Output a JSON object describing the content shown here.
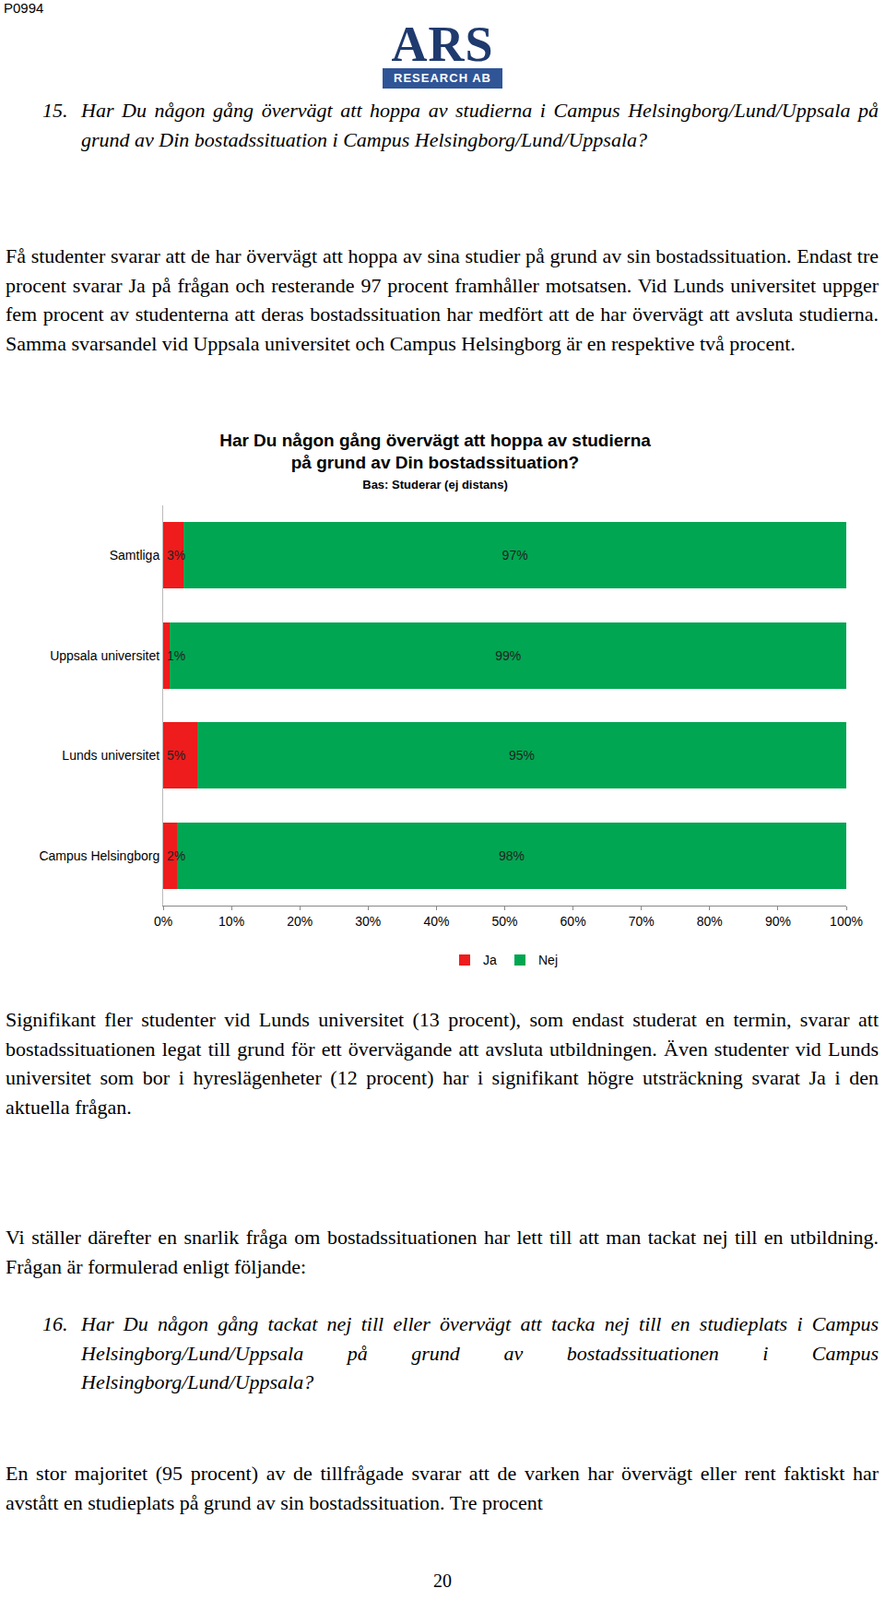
{
  "document": {
    "page_id": "P0994",
    "logo": {
      "name": "ARS",
      "subtitle": "RESEARCH AB"
    },
    "question_15": {
      "number": "15.",
      "text": "Har Du någon gång övervägt att hoppa av studierna i Campus Helsingborg/Lund/Uppsala på grund av Din bostadssituation i Campus Helsingborg/Lund/Uppsala?"
    },
    "paragraph_1": "Få studenter svarar att de har övervägt att hoppa av sina studier på grund av sin bostadssituation. Endast tre procent svarar Ja på frågan och resterande 97 procent framhåller motsatsen. Vid Lunds universitet uppger fem procent av studenterna att deras bostadssituation har medfört att de har övervägt att avsluta studierna. Samma svarsandel vid Uppsala universitet och Campus Helsingborg är en respektive två procent.",
    "paragraph_2": "Signifikant fler studenter vid Lunds universitet (13 procent), som endast studerat en termin, svarar att bostadssituationen legat till grund för ett övervägande att avsluta utbildningen. Även studenter vid Lunds universitet som bor i hyreslägenheter (12 procent) har i signifikant högre utsträckning svarat Ja i den aktuella frågan.",
    "paragraph_3": "Vi ställer därefter en snarlik fråga om bostadssituationen har lett till att man tackat nej till en utbildning. Frågan är formulerad enligt följande:",
    "question_16": {
      "number": "16.",
      "text": "Har Du någon gång tackat nej till eller övervägt att tacka nej till en studieplats i Campus Helsingborg/Lund/Uppsala på grund av bostadssituationen i Campus Helsingborg/Lund/Uppsala?"
    },
    "paragraph_4": "En stor majoritet (95 procent) av de tillfrågade svarar att de varken har övervägt eller rent faktiskt har avstått en studieplats på grund av sin bostadssituation. Tre procent",
    "page_number": "20"
  },
  "chart_data": {
    "type": "bar",
    "title": "Har Du någon gång övervägt att hoppa av studierna på grund av Din bostadssituation?",
    "subtitle": "Bas: Studerar (ej distans)",
    "orientation": "horizontal",
    "stacked": true,
    "data_labels": true,
    "grid": false,
    "legend": "bottom",
    "categories": [
      "Samtliga",
      "Uppsala universitet",
      "Lunds universitet",
      "Campus Helsingborg"
    ],
    "series": [
      {
        "name": "Ja",
        "color": "#ee1c1c",
        "values": [
          3,
          1,
          5,
          2
        ],
        "value_labels": [
          "3%",
          "1%",
          "5%",
          "2%"
        ]
      },
      {
        "name": "Nej",
        "color": "#00a651",
        "values": [
          97,
          99,
          95,
          98
        ],
        "value_labels": [
          "97%",
          "99%",
          "95%",
          "98%"
        ]
      }
    ],
    "xlim": [
      0,
      100
    ],
    "xticks": [
      {
        "value": 0,
        "label": "0%"
      },
      {
        "value": 10,
        "label": "10%"
      },
      {
        "value": 20,
        "label": "20%"
      },
      {
        "value": 30,
        "label": "30%"
      },
      {
        "value": 40,
        "label": "40%"
      },
      {
        "value": 50,
        "label": "50%"
      },
      {
        "value": 60,
        "label": "60%"
      },
      {
        "value": 70,
        "label": "70%"
      },
      {
        "value": 80,
        "label": "80%"
      },
      {
        "value": 90,
        "label": "90%"
      },
      {
        "value": 100,
        "label": "100%"
      }
    ]
  }
}
